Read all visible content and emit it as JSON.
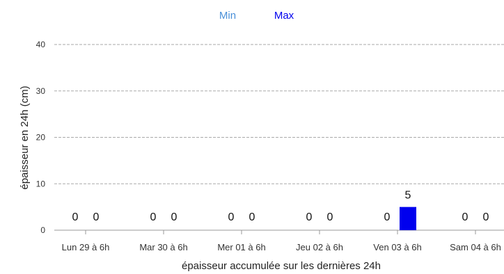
{
  "chart_data": {
    "type": "bar",
    "title": "",
    "xlabel": "épaisseur accumulée sur les dernières 24h",
    "ylabel": "épaisseur en 24h (cm)",
    "ylim": [
      0,
      40
    ],
    "yticks": [
      0,
      10,
      20,
      30,
      40
    ],
    "grid": true,
    "legend_position": "top-center",
    "categories": [
      "Lun 29 à 6h",
      "Mar 30 à 6h",
      "Mer 01 à 6h",
      "Jeu 02 à 6h",
      "Ven 03 à 6h",
      "Sam 04 à 6h"
    ],
    "series": [
      {
        "name": "Min",
        "color": "#4a90d9",
        "values": [
          0,
          0,
          0,
          0,
          0,
          0
        ]
      },
      {
        "name": "Max",
        "color": "#0000ee",
        "values": [
          0,
          0,
          0,
          0,
          5,
          0
        ]
      }
    ]
  }
}
